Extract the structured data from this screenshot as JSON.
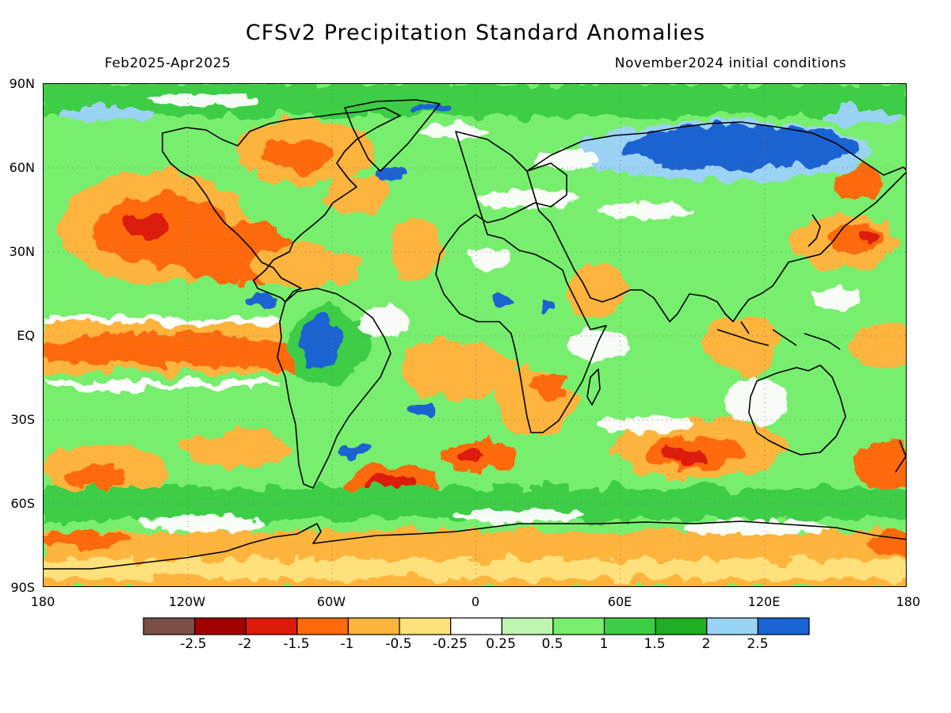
{
  "title": "CFSv2 Precipitation Standard Anomalies",
  "period": "Feb2025-Apr2025",
  "init": "November2024 initial conditions",
  "lat_labels": [
    "90N",
    "60N",
    "30N",
    "EQ",
    "30S",
    "60S",
    "90S"
  ],
  "lon_labels": [
    "180",
    "120W",
    "60W",
    "0",
    "60E",
    "120E",
    "180"
  ],
  "colorbar": {
    "colors": [
      "#7b4f45",
      "#a00000",
      "#dc1a0a",
      "#ff6a0a",
      "#ffb43c",
      "#ffe07a",
      "#ffffff",
      "#bff5b0",
      "#78ee6e",
      "#3ccd46",
      "#1fae24",
      "#9bd3f5",
      "#1b63d2"
    ],
    "labels": [
      "-2.5",
      "-2",
      "-1.5",
      "-1",
      "-0.5",
      "-0.25",
      "0.25",
      "0.5",
      "1",
      "1.5",
      "2",
      "2.5"
    ]
  }
}
